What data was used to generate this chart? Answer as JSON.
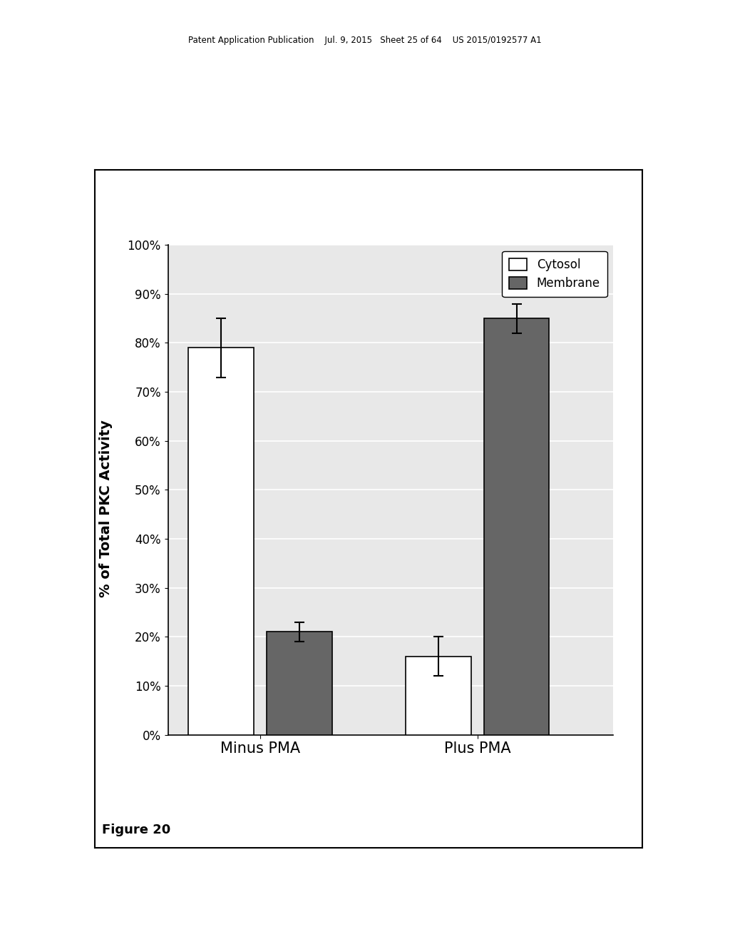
{
  "groups": [
    "Minus PMA",
    "Plus PMA"
  ],
  "cytosol_values": [
    0.79,
    0.16
  ],
  "membrane_values": [
    0.21,
    0.85
  ],
  "cytosol_errors": [
    0.06,
    0.04
  ],
  "membrane_errors": [
    0.02,
    0.03
  ],
  "cytosol_color": "#ffffff",
  "cytosol_edge": "#000000",
  "membrane_color": "#666666",
  "membrane_edge": "#000000",
  "ylabel": "% of Total PKC Activity",
  "ylim": [
    0,
    1.0
  ],
  "yticks": [
    0.0,
    0.1,
    0.2,
    0.3,
    0.4,
    0.5,
    0.6,
    0.7,
    0.8,
    0.9,
    1.0
  ],
  "yticklabels": [
    "0%",
    "10%",
    "20%",
    "30%",
    "40%",
    "50%",
    "60%",
    "70%",
    "80%",
    "90%",
    "100%"
  ],
  "legend_labels": [
    "Cytosol",
    "Membrane"
  ],
  "figure_caption": "Figure 20",
  "bar_width": 0.12,
  "group_centers": [
    0.25,
    0.65
  ],
  "header_text": "Patent Application Publication    Jul. 9, 2015   Sheet 25 of 64    US 2015/0192577 A1"
}
